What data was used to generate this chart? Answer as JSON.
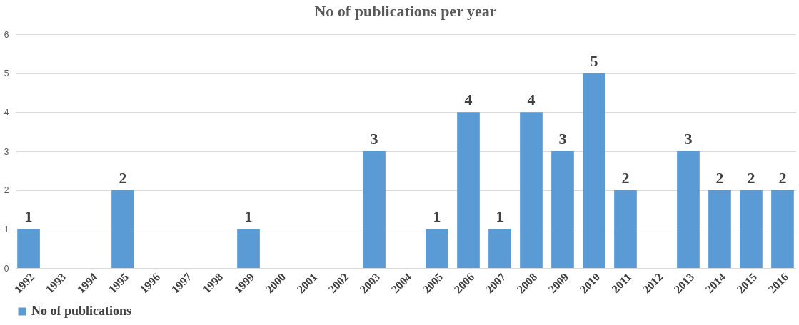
{
  "chart_data": {
    "type": "bar",
    "title": "No of publications per year",
    "categories": [
      "1992",
      "1993",
      "1994",
      "1995",
      "1996",
      "1997",
      "1998",
      "1999",
      "2000",
      "2001",
      "2002",
      "2003",
      "2004",
      "2005",
      "2006",
      "2007",
      "2008",
      "2009",
      "2010",
      "2011",
      "2012",
      "2013",
      "2014",
      "2015",
      "2016"
    ],
    "series": [
      {
        "name": "No of publications",
        "color": "#5b9bd5",
        "values": [
          1,
          0,
          0,
          2,
          0,
          0,
          0,
          1,
          0,
          0,
          0,
          3,
          0,
          1,
          4,
          1,
          4,
          3,
          5,
          2,
          0,
          3,
          2,
          2,
          2
        ],
        "value_labels": [
          "1",
          null,
          null,
          "2",
          null,
          null,
          null,
          "1",
          null,
          null,
          null,
          "3",
          null,
          "1",
          "4",
          "1",
          "4",
          "3",
          "5",
          "2",
          null,
          "3",
          "2",
          "2",
          "2"
        ]
      }
    ],
    "ylim": [
      0,
      6
    ],
    "yticks": [
      0,
      1,
      2,
      3,
      4,
      5,
      6
    ],
    "grid": "y",
    "legend": "bottom"
  }
}
